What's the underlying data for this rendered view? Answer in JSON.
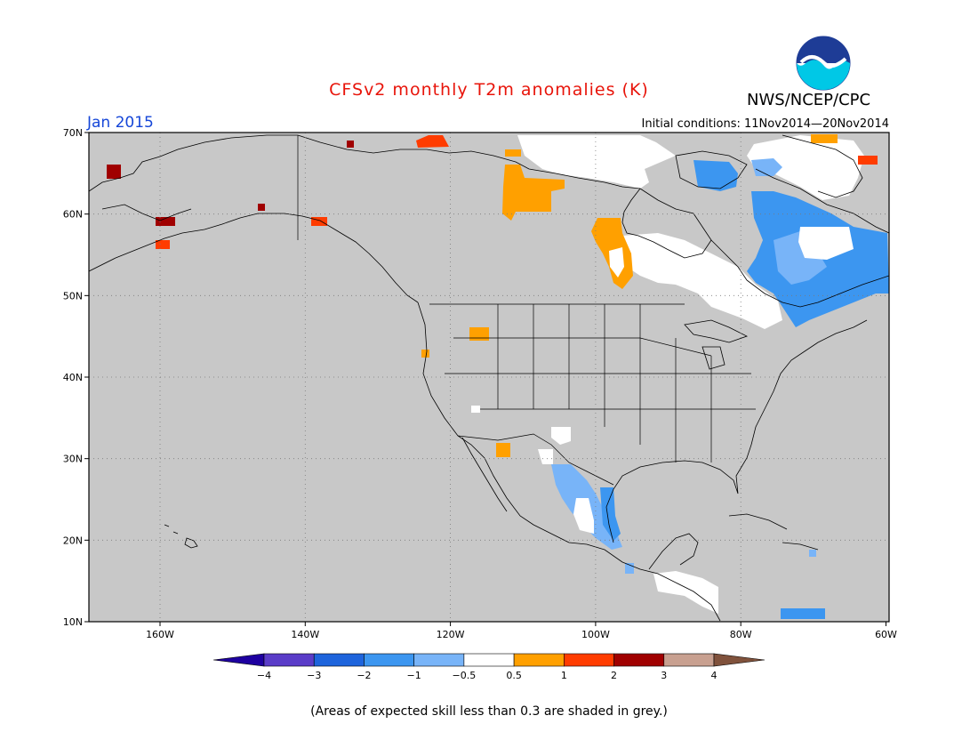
{
  "header": {
    "title": "CFSv2 monthly T2m anomalies (K)",
    "forecast_month": "Jan 2015",
    "agency": "NWS/NCEP/CPC",
    "initial_conditions": "Initial conditions: 11Nov2014—20Nov2014",
    "logo_text": "NOAA"
  },
  "map": {
    "lat_labels": [
      "70N",
      "60N",
      "50N",
      "40N",
      "30N",
      "20N",
      "10N"
    ],
    "lon_labels": [
      "160W",
      "140W",
      "120W",
      "100W",
      "80W",
      "60W"
    ],
    "land_color": "#c8c8c8",
    "grid": "dotted"
  },
  "anomaly_regions": [
    {
      "region": "northeastern Canada / Quebec / Labrador",
      "category": "-1",
      "color": "#3c96f0"
    },
    {
      "region": "Hudson Bay / Ontario",
      "category": "-0.5 to 0.5",
      "color": "#ffffff"
    },
    {
      "region": "northern Baffin Island / Canadian Arctic",
      "category": "-0.5 to 0.5",
      "color": "#ffffff"
    },
    {
      "region": "eastern Mexico / Gulf coast",
      "category": "-1",
      "color": "#3c96f0"
    },
    {
      "region": "northwestern Canada (NWT)",
      "category": "0.5 to 1",
      "color": "#ffa000"
    },
    {
      "region": "Saskatchewan / Manitoba",
      "category": "0.5 to 1",
      "color": "#ffa000"
    },
    {
      "region": "Alaska coast / Aleutians",
      "category": "2 to 3",
      "color": "#a00000"
    }
  ],
  "colorbar": {
    "labels": [
      "−4",
      "−3",
      "−2",
      "−1",
      "−0.5",
      "0.5",
      "1",
      "2",
      "3",
      "4"
    ],
    "colors": [
      "#1e00a0",
      "#5a3cc8",
      "#1e64dc",
      "#3c96f0",
      "#78b4f8",
      "#ffffff",
      "#ffa000",
      "#ff3c00",
      "#a00000",
      "#c8a090",
      "#80523c"
    ]
  },
  "footnote": "(Areas of expected skill less than 0.3 are shaded in grey.)"
}
